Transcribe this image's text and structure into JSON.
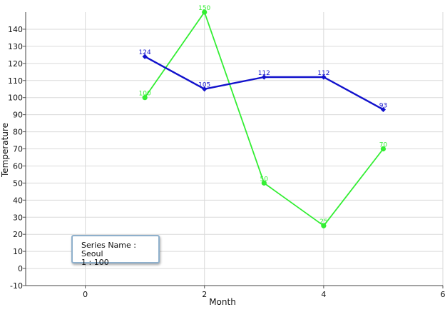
{
  "chart_data": {
    "type": "line",
    "xlabel": "Month",
    "ylabel": "Temperature",
    "xlim": [
      -1,
      6
    ],
    "ylim": [
      -10,
      150
    ],
    "x_ticks": [
      0,
      2,
      4,
      6
    ],
    "y_ticks": [
      -10,
      0,
      10,
      20,
      30,
      40,
      50,
      60,
      70,
      80,
      90,
      100,
      110,
      120,
      130,
      140
    ],
    "grid": true,
    "series": [
      {
        "name": "Seoul",
        "color": "#33ee33",
        "marker": "circle",
        "x": [
          1,
          2,
          3,
          4,
          5
        ],
        "y": [
          100,
          150,
          50,
          25,
          70
        ],
        "labels": [
          "100",
          "150",
          "50",
          "25",
          "70"
        ]
      },
      {
        "name": "",
        "color": "#1111cc",
        "marker": "diamond",
        "x": [
          1,
          2,
          3,
          4,
          5
        ],
        "y": [
          124,
          105,
          112,
          112,
          93
        ],
        "labels": [
          "124",
          "105",
          "112",
          "112",
          "93"
        ]
      }
    ]
  },
  "tooltip": {
    "line1": "Series Name : Seoul",
    "line2": "1 : 100"
  }
}
